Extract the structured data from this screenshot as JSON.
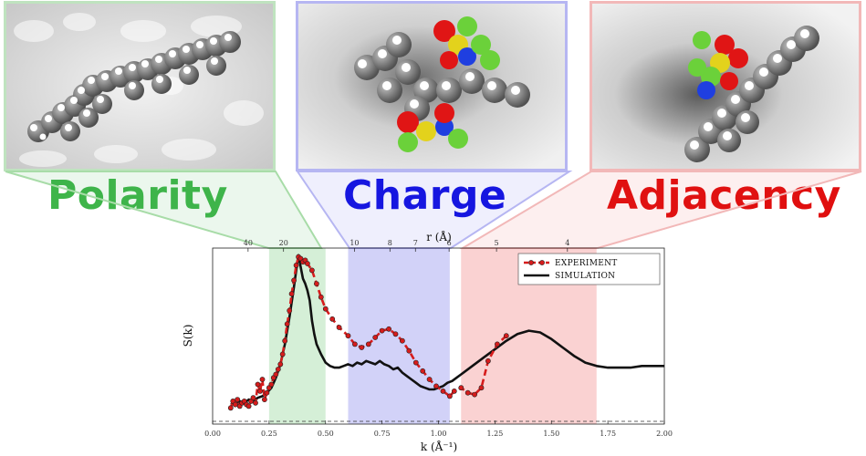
{
  "categories": {
    "polarity": "Polarity",
    "charge": "Charge",
    "adjacency": "Adjacency"
  },
  "colors": {
    "polarity": "#3fb54a",
    "charge": "#1414e0",
    "adjacency": "#e00f0f"
  },
  "chart_data": {
    "type": "line",
    "xlabel": "k (Å⁻¹)",
    "ylabel": "S(k)",
    "top_axis_label": "r (Å)",
    "xlim": [
      0.0,
      2.0
    ],
    "x_ticks": [
      "0.00",
      "0.25",
      "0.50",
      "0.75",
      "1.00",
      "1.25",
      "1.50",
      "1.75",
      "2.00"
    ],
    "top_ticks": [
      {
        "label": "40",
        "k": 0.157
      },
      {
        "label": "20",
        "k": 0.314
      },
      {
        "label": "10",
        "k": 0.628
      },
      {
        "label": "8",
        "k": 0.785
      },
      {
        "label": "7",
        "k": 0.898
      },
      {
        "label": "6",
        "k": 1.047
      },
      {
        "label": "5",
        "k": 1.257
      },
      {
        "label": "4",
        "k": 1.571
      }
    ],
    "ylim": [
      0,
      100
    ],
    "regions": [
      {
        "name": "Polarity",
        "from": 0.25,
        "to": 0.5,
        "color": "#3fb54a"
      },
      {
        "name": "Charge",
        "from": 0.6,
        "to": 1.05,
        "color": "#3030e0"
      },
      {
        "name": "Adjacency",
        "from": 1.1,
        "to": 1.7,
        "color": "#e83030"
      }
    ],
    "legend_placement": "top-right",
    "series": [
      {
        "name": "EXPERIMENT",
        "color": "#d61c1c",
        "style": "dashed-with-markers",
        "x": [
          0.08,
          0.09,
          0.1,
          0.11,
          0.12,
          0.13,
          0.14,
          0.15,
          0.16,
          0.17,
          0.18,
          0.19,
          0.2,
          0.21,
          0.22,
          0.23,
          0.24,
          0.25,
          0.26,
          0.27,
          0.28,
          0.29,
          0.3,
          0.31,
          0.32,
          0.33,
          0.34,
          0.35,
          0.36,
          0.37,
          0.38,
          0.39,
          0.4,
          0.41,
          0.42,
          0.44,
          0.46,
          0.48,
          0.5,
          0.53,
          0.56,
          0.6,
          0.63,
          0.66,
          0.69,
          0.72,
          0.75,
          0.78,
          0.81,
          0.84,
          0.87,
          0.9,
          0.93,
          0.96,
          0.99,
          1.02,
          1.05,
          1.07,
          1.1,
          1.13,
          1.16,
          1.19,
          1.22,
          1.26,
          1.3
        ],
        "values": [
          8,
          12,
          10,
          13,
          9,
          11,
          12,
          10,
          9,
          12,
          14,
          11,
          22,
          18,
          25,
          13,
          17,
          20,
          22,
          26,
          28,
          31,
          34,
          40,
          48,
          58,
          66,
          76,
          84,
          93,
          98,
          97,
          95,
          96,
          94,
          90,
          82,
          74,
          67,
          61,
          56,
          51,
          46,
          44,
          46,
          50,
          54,
          55,
          52,
          48,
          42,
          35,
          30,
          25,
          21,
          18,
          15,
          18,
          20,
          17,
          16,
          20,
          36,
          46,
          51
        ]
      },
      {
        "name": "SIMULATION",
        "color": "#111111",
        "style": "solid",
        "x": [
          0.08,
          0.1,
          0.12,
          0.14,
          0.16,
          0.18,
          0.2,
          0.22,
          0.24,
          0.26,
          0.28,
          0.3,
          0.32,
          0.34,
          0.36,
          0.37,
          0.38,
          0.39,
          0.4,
          0.41,
          0.42,
          0.43,
          0.44,
          0.45,
          0.46,
          0.48,
          0.5,
          0.52,
          0.54,
          0.56,
          0.58,
          0.6,
          0.62,
          0.64,
          0.66,
          0.68,
          0.7,
          0.72,
          0.74,
          0.76,
          0.78,
          0.8,
          0.82,
          0.84,
          0.86,
          0.88,
          0.9,
          0.92,
          0.94,
          0.96,
          0.98,
          1.0,
          1.02,
          1.04,
          1.06,
          1.08,
          1.1,
          1.15,
          1.2,
          1.25,
          1.3,
          1.35,
          1.4,
          1.45,
          1.5,
          1.55,
          1.6,
          1.65,
          1.7,
          1.75,
          1.8,
          1.85,
          1.9,
          1.95,
          2.0
        ],
        "values": [
          10,
          11,
          12,
          11,
          13,
          12,
          14,
          15,
          17,
          20,
          26,
          34,
          46,
          62,
          80,
          90,
          99,
          92,
          85,
          82,
          78,
          72,
          60,
          52,
          46,
          40,
          35,
          33,
          32,
          32,
          33,
          34,
          33,
          35,
          34,
          36,
          35,
          34,
          36,
          34,
          33,
          31,
          32,
          29,
          27,
          25,
          23,
          21,
          20,
          19,
          19,
          20,
          21,
          23,
          24,
          26,
          28,
          33,
          38,
          43,
          48,
          52,
          54,
          53,
          49,
          44,
          39,
          35,
          33,
          32,
          32,
          32,
          33,
          33,
          33
        ]
      }
    ]
  }
}
